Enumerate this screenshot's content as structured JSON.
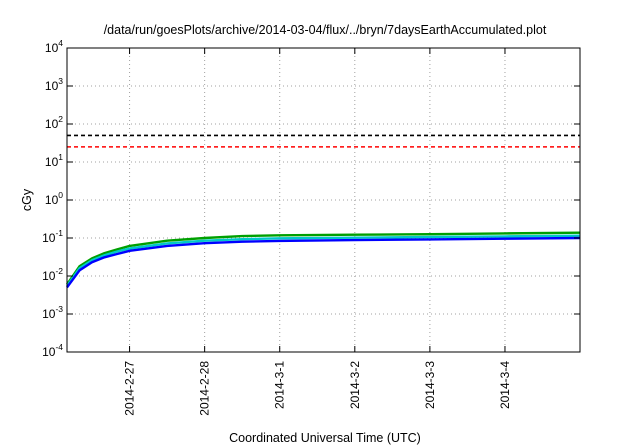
{
  "chart_data": {
    "type": "line",
    "title": "/data/run/goesPlots/archive/2014-03-04/flux/../bryn/7daysEarthAccumulated.plot",
    "xlabel": "Coordinated Universal Time (UTC)",
    "ylabel": "cGy",
    "y_scale": "log",
    "ylim": [
      0.0001,
      10000
    ],
    "xlim": [
      "2014-02-26 04:00",
      "2014-03-04 23:59"
    ],
    "grid": true,
    "legend": "none",
    "x_ticks": [
      {
        "label": "2014-2-27",
        "date": "2014-02-27 00:00"
      },
      {
        "label": "2014-2-28",
        "date": "2014-02-28 00:00"
      },
      {
        "label": "2014-3-1",
        "date": "2014-03-01 00:00"
      },
      {
        "label": "2014-3-2",
        "date": "2014-03-02 00:00"
      },
      {
        "label": "2014-3-3",
        "date": "2014-03-03 00:00"
      },
      {
        "label": "2014-3-4",
        "date": "2014-03-04 00:00"
      }
    ],
    "y_ticks": [
      {
        "base": "10",
        "exp": "-4",
        "value": 0.0001
      },
      {
        "base": "10",
        "exp": "-3",
        "value": 0.001
      },
      {
        "base": "10",
        "exp": "-2",
        "value": 0.01
      },
      {
        "base": "10",
        "exp": "-1",
        "value": 0.1
      },
      {
        "base": "10",
        "exp": "0",
        "value": 1
      },
      {
        "base": "10",
        "exp": "1",
        "value": 10
      },
      {
        "base": "10",
        "exp": "2",
        "value": 100
      },
      {
        "base": "10",
        "exp": "3",
        "value": 1000
      },
      {
        "base": "10",
        "exp": "4",
        "value": 10000
      }
    ],
    "reference_lines": [
      {
        "value": 50,
        "color": "#000000",
        "style": "dashed"
      },
      {
        "value": 25,
        "color": "#ff0000",
        "style": "dashed"
      }
    ],
    "series": [
      {
        "color": "#00a000",
        "x": [
          "2014-02-26 04:00",
          "2014-02-26 08:00",
          "2014-02-26 12:00",
          "2014-02-26 16:00",
          "2014-02-26 20:00",
          "2014-02-27 00:00",
          "2014-02-27 12:00",
          "2014-02-28 00:00",
          "2014-02-28 12:00",
          "2014-03-01 00:00",
          "2014-03-02 00:00",
          "2014-03-03 00:00",
          "2014-03-04 00:00",
          "2014-03-04 23:59"
        ],
        "values": [
          0.006,
          0.018,
          0.029,
          0.04,
          0.05,
          0.062,
          0.085,
          0.1,
          0.112,
          0.118,
          0.122,
          0.126,
          0.132,
          0.138
        ]
      },
      {
        "color": "#00c8c8",
        "x": [
          "2014-02-26 04:00",
          "2014-02-26 08:00",
          "2014-02-26 12:00",
          "2014-02-26 16:00",
          "2014-02-26 20:00",
          "2014-02-27 00:00",
          "2014-02-27 12:00",
          "2014-02-28 00:00",
          "2014-02-28 12:00",
          "2014-03-01 00:00",
          "2014-03-02 00:00",
          "2014-03-03 00:00",
          "2014-03-04 00:00",
          "2014-03-04 23:59"
        ],
        "values": [
          0.0055,
          0.016,
          0.026,
          0.035,
          0.044,
          0.053,
          0.072,
          0.085,
          0.093,
          0.098,
          0.102,
          0.106,
          0.11,
          0.115
        ]
      },
      {
        "color": "#0000ff",
        "x": [
          "2014-02-26 04:00",
          "2014-02-26 08:00",
          "2014-02-26 12:00",
          "2014-02-26 16:00",
          "2014-02-26 20:00",
          "2014-02-27 00:00",
          "2014-02-27 12:00",
          "2014-02-28 00:00",
          "2014-02-28 12:00",
          "2014-03-01 00:00",
          "2014-03-02 00:00",
          "2014-03-03 00:00",
          "2014-03-04 00:00",
          "2014-03-04 23:59"
        ],
        "values": [
          0.005,
          0.014,
          0.023,
          0.031,
          0.038,
          0.046,
          0.062,
          0.073,
          0.08,
          0.084,
          0.088,
          0.092,
          0.096,
          0.1
        ]
      }
    ]
  }
}
